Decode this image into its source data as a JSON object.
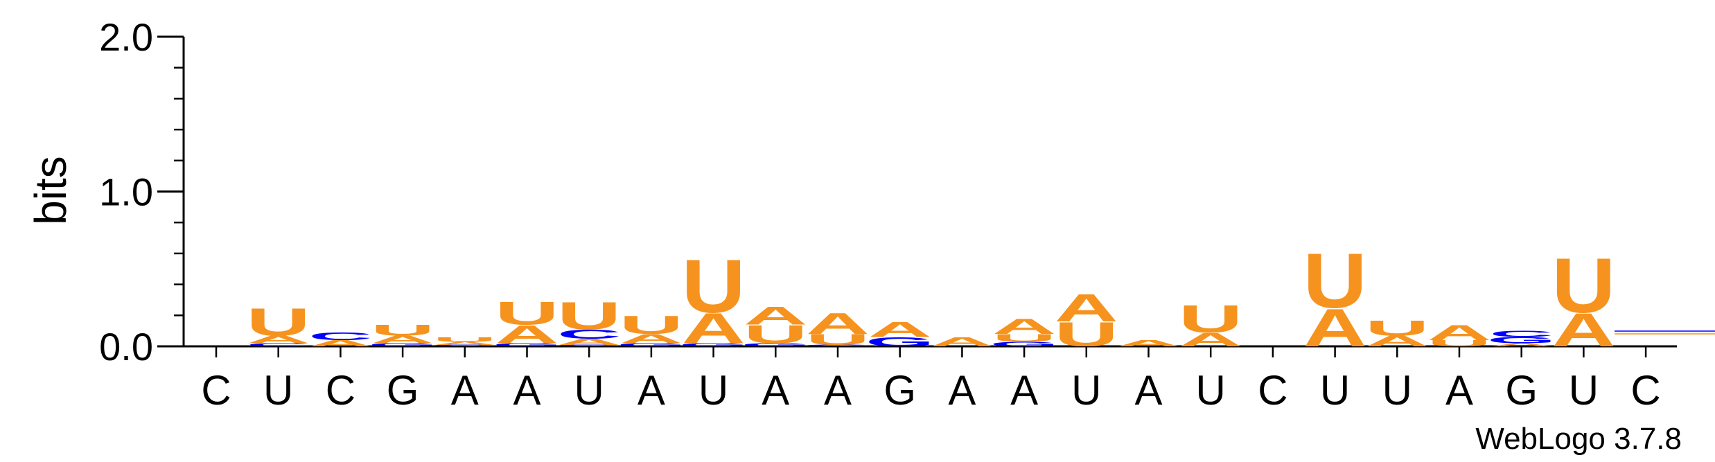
{
  "chart_data": {
    "type": "sequence-logo",
    "title": "",
    "xlabel": "",
    "ylabel": "bits",
    "ylim": [
      0,
      2
    ],
    "yticks": [
      {
        "value": 0,
        "label": "0.0"
      },
      {
        "value": 1,
        "label": "1.0"
      },
      {
        "value": 2,
        "label": "2.0"
      }
    ],
    "colors": {
      "A": "#f6931e",
      "U": "#f6931e",
      "C": "#0000ff",
      "G": "#0000ff"
    },
    "positions": [
      {
        "label": "C",
        "stack": []
      },
      {
        "label": "U",
        "stack": [
          {
            "base": "C",
            "bits": 0.02
          },
          {
            "base": "A",
            "bits": 0.05
          },
          {
            "base": "U",
            "bits": 0.18
          }
        ]
      },
      {
        "label": "C",
        "stack": [
          {
            "base": "A",
            "bits": 0.04
          },
          {
            "base": "C",
            "bits": 0.05
          }
        ]
      },
      {
        "label": "G",
        "stack": [
          {
            "base": "G",
            "bits": 0.02
          },
          {
            "base": "A",
            "bits": 0.05
          },
          {
            "base": "U",
            "bits": 0.07
          }
        ]
      },
      {
        "label": "A",
        "stack": [
          {
            "base": "G",
            "bits": 0.01
          },
          {
            "base": "A",
            "bits": 0.02
          },
          {
            "base": "U",
            "bits": 0.03
          }
        ]
      },
      {
        "label": "A",
        "stack": [
          {
            "base": "G",
            "bits": 0.02
          },
          {
            "base": "A",
            "bits": 0.12
          },
          {
            "base": "U",
            "bits": 0.15
          }
        ]
      },
      {
        "label": "U",
        "stack": [
          {
            "base": "G",
            "bits": 0.01
          },
          {
            "base": "A",
            "bits": 0.04
          },
          {
            "base": "C",
            "bits": 0.06
          },
          {
            "base": "U",
            "bits": 0.18
          }
        ]
      },
      {
        "label": "A",
        "stack": [
          {
            "base": "G",
            "bits": 0.02
          },
          {
            "base": "A",
            "bits": 0.06
          },
          {
            "base": "U",
            "bits": 0.12
          }
        ]
      },
      {
        "label": "U",
        "stack": [
          {
            "base": "G",
            "bits": 0.02
          },
          {
            "base": "A",
            "bits": 0.2
          },
          {
            "base": "U",
            "bits": 0.35
          }
        ]
      },
      {
        "label": "A",
        "stack": [
          {
            "base": "G",
            "bits": 0.02
          },
          {
            "base": "U",
            "bits": 0.12
          },
          {
            "base": "A",
            "bits": 0.12
          }
        ]
      },
      {
        "label": "A",
        "stack": [
          {
            "base": "G",
            "bits": 0.01
          },
          {
            "base": "U",
            "bits": 0.07
          },
          {
            "base": "A",
            "bits": 0.14
          }
        ]
      },
      {
        "label": "G",
        "stack": [
          {
            "base": "G",
            "bits": 0.06
          },
          {
            "base": "A",
            "bits": 0.1
          }
        ]
      },
      {
        "label": "A",
        "stack": [
          {
            "base": "A",
            "bits": 0.06
          }
        ]
      },
      {
        "label": "A",
        "stack": [
          {
            "base": "G",
            "bits": 0.03
          },
          {
            "base": "U",
            "bits": 0.05
          },
          {
            "base": "A",
            "bits": 0.1
          }
        ]
      },
      {
        "label": "U",
        "stack": [
          {
            "base": "U",
            "bits": 0.16
          },
          {
            "base": "A",
            "bits": 0.18
          }
        ]
      },
      {
        "label": "A",
        "stack": [
          {
            "base": "A",
            "bits": 0.04
          }
        ]
      },
      {
        "label": "U",
        "stack": [
          {
            "base": "A",
            "bits": 0.09
          },
          {
            "base": "U",
            "bits": 0.18
          }
        ]
      },
      {
        "label": "C",
        "stack": []
      },
      {
        "label": "U",
        "stack": [
          {
            "base": "A",
            "bits": 0.25
          },
          {
            "base": "U",
            "bits": 0.36
          }
        ]
      },
      {
        "label": "U",
        "stack": [
          {
            "base": "A",
            "bits": 0.07
          },
          {
            "base": "U",
            "bits": 0.1
          }
        ]
      },
      {
        "label": "A",
        "stack": [
          {
            "base": "U",
            "bits": 0.04
          },
          {
            "base": "A",
            "bits": 0.1
          }
        ]
      },
      {
        "label": "G",
        "stack": [
          {
            "base": "A",
            "bits": 0.02
          },
          {
            "base": "G",
            "bits": 0.04
          },
          {
            "base": "C",
            "bits": 0.04
          }
        ]
      },
      {
        "label": "U",
        "stack": [
          {
            "base": "A",
            "bits": 0.22
          },
          {
            "base": "U",
            "bits": 0.36
          }
        ]
      },
      {
        "label": "C",
        "stack": []
      }
    ],
    "credit": "WebLogo 3.7.8"
  }
}
